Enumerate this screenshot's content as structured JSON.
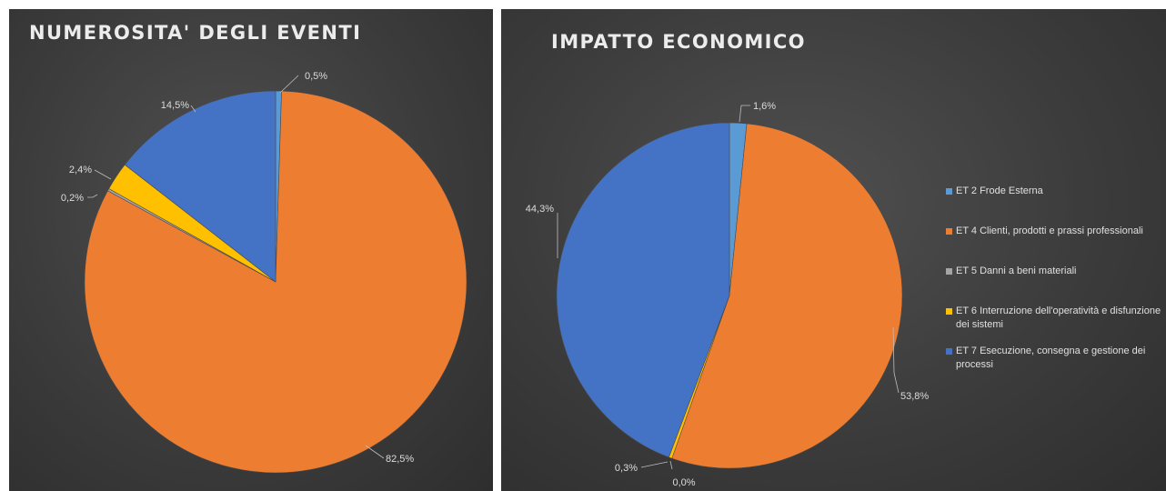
{
  "chart_data": [
    {
      "type": "pie",
      "title": "NUMEROSITA' DEGLI EVENTI",
      "series": [
        {
          "name": "ET 2 Frode Esterna",
          "value": 0.5,
          "label": "0,5%",
          "color": "#5b9bd5"
        },
        {
          "name": "ET 4 Clienti, prodotti e prassi professionali",
          "value": 82.5,
          "label": "82,5%",
          "color": "#ed7d31"
        },
        {
          "name": "ET 5 Danni a beni materiali",
          "value": 0.2,
          "label": "0,2%",
          "color": "#a5a5a5"
        },
        {
          "name": "ET 6 Interruzione dell'operatività e disfunzione dei sistemi",
          "value": 2.4,
          "label": "2,4%",
          "color": "#ffc000"
        },
        {
          "name": "ET 7 Esecuzione, consegna e gestione dei processi",
          "value": 14.5,
          "label": "14,5%",
          "color": "#4472c4"
        }
      ]
    },
    {
      "type": "pie",
      "title": "IMPATTO ECONOMICO",
      "series": [
        {
          "name": "ET 2 Frode Esterna",
          "value": 1.6,
          "label": "1,6%",
          "color": "#5b9bd5"
        },
        {
          "name": "ET 4 Clienti, prodotti e prassi professionali",
          "value": 53.8,
          "label": "53,8%",
          "color": "#ed7d31"
        },
        {
          "name": "ET 5 Danni a beni materiali",
          "value": 0.0,
          "label": "0,0%",
          "color": "#a5a5a5"
        },
        {
          "name": "ET 6 Interruzione dell'operatività e disfunzione dei sistemi",
          "value": 0.3,
          "label": "0,3%",
          "color": "#ffc000"
        },
        {
          "name": "ET 7 Esecuzione, consegna e gestione dei processi",
          "value": 44.3,
          "label": "44,3%",
          "color": "#4472c4"
        }
      ]
    }
  ],
  "legend": {
    "placement": "right",
    "items": [
      {
        "label": "ET 2 Frode Esterna",
        "color": "#5b9bd5"
      },
      {
        "label": "ET 4 Clienti, prodotti e prassi professionali",
        "color": "#ed7d31"
      },
      {
        "label": "ET 5 Danni a beni materiali",
        "color": "#a5a5a5"
      },
      {
        "label": "ET 6 Interruzione dell'operatività e disfunzione dei sistemi",
        "color": "#ffc000"
      },
      {
        "label": "ET 7 Esecuzione, consegna e gestione dei processi",
        "color": "#4472c4"
      }
    ]
  }
}
